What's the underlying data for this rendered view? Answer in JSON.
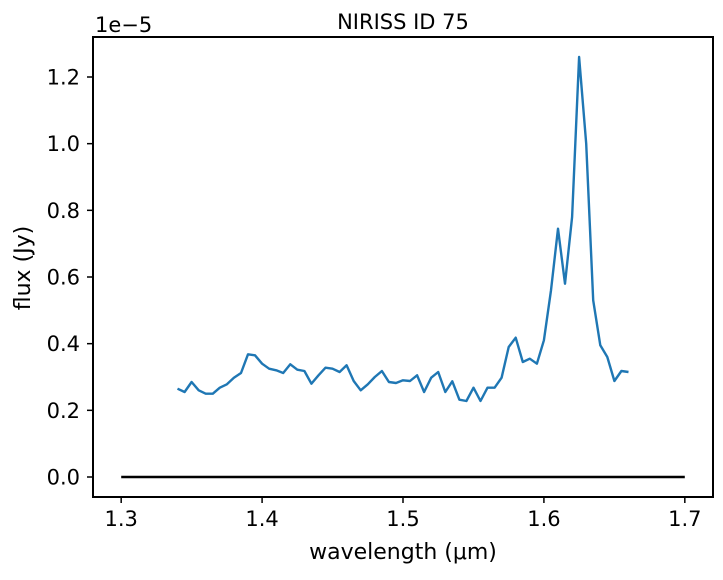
{
  "chart_data": {
    "type": "line",
    "title": "NIRISS ID 75",
    "xlabel": "wavelength (μm)",
    "ylabel": "flux (Jy)",
    "offset_label": "1e−5",
    "xlim": [
      1.28,
      1.72
    ],
    "ylim": [
      -0.06,
      1.32
    ],
    "y_scale": "1e-5",
    "grid": false,
    "legend": "none",
    "x_ticks": [
      {
        "value": 1.3,
        "label": "1.3"
      },
      {
        "value": 1.4,
        "label": "1.4"
      },
      {
        "value": 1.5,
        "label": "1.5"
      },
      {
        "value": 1.6,
        "label": "1.6"
      },
      {
        "value": 1.7,
        "label": "1.7"
      }
    ],
    "y_ticks": [
      {
        "value": 0.0,
        "label": "0.0"
      },
      {
        "value": 0.2,
        "label": "0.2"
      },
      {
        "value": 0.4,
        "label": "0.4"
      },
      {
        "value": 0.6,
        "label": "0.6"
      },
      {
        "value": 0.8,
        "label": "0.8"
      },
      {
        "value": 1.0,
        "label": "1.0"
      },
      {
        "value": 1.2,
        "label": "1.2"
      }
    ],
    "series": [
      {
        "color": "#1f77b4",
        "x": [
          1.34,
          1.345,
          1.35,
          1.355,
          1.36,
          1.365,
          1.37,
          1.375,
          1.38,
          1.385,
          1.39,
          1.395,
          1.4,
          1.405,
          1.41,
          1.415,
          1.42,
          1.425,
          1.43,
          1.435,
          1.44,
          1.445,
          1.45,
          1.455,
          1.46,
          1.465,
          1.47,
          1.475,
          1.48,
          1.485,
          1.49,
          1.495,
          1.5,
          1.505,
          1.51,
          1.515,
          1.52,
          1.525,
          1.53,
          1.535,
          1.54,
          1.545,
          1.55,
          1.555,
          1.56,
          1.565,
          1.57,
          1.575,
          1.58,
          1.585,
          1.59,
          1.595,
          1.6,
          1.605,
          1.61,
          1.615,
          1.62,
          1.625,
          1.63,
          1.635,
          1.64,
          1.645,
          1.65,
          1.655,
          1.66
        ],
        "y": [
          0.265,
          0.255,
          0.285,
          0.26,
          0.25,
          0.25,
          0.268,
          0.278,
          0.298,
          0.312,
          0.368,
          0.365,
          0.34,
          0.325,
          0.32,
          0.312,
          0.338,
          0.322,
          0.318,
          0.28,
          0.305,
          0.328,
          0.325,
          0.315,
          0.335,
          0.288,
          0.26,
          0.278,
          0.3,
          0.318,
          0.285,
          0.282,
          0.29,
          0.288,
          0.305,
          0.255,
          0.298,
          0.315,
          0.255,
          0.287,
          0.232,
          0.228,
          0.268,
          0.228,
          0.268,
          0.268,
          0.298,
          0.39,
          0.418,
          0.345,
          0.355,
          0.34,
          0.41,
          0.56,
          0.745,
          0.58,
          0.78,
          1.26,
          1.0,
          0.53,
          0.395,
          0.36,
          0.288,
          0.318,
          0.315
        ]
      },
      {
        "color": "#000000",
        "x": [
          1.3,
          1.7
        ],
        "y": [
          0.0,
          0.0
        ]
      }
    ]
  }
}
